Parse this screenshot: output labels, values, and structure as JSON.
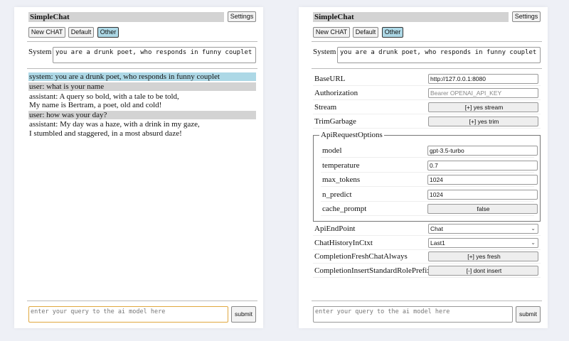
{
  "app": {
    "title": "SimpleChat",
    "settings_label": "Settings",
    "buttons": [
      "New CHAT",
      "Default",
      "Other"
    ],
    "selected": "Other"
  },
  "system": {
    "label": "System",
    "value": "you are a drunk poet, who responds in funny couplet"
  },
  "chat": {
    "messages": [
      {
        "role": "system",
        "lines": [
          "system: you are a drunk poet, who responds in funny couplet"
        ]
      },
      {
        "role": "user",
        "lines": [
          "user: what is your name"
        ]
      },
      {
        "role": "assistant",
        "lines": [
          "assistant: A query so bold, with a tale to be told,",
          "My name is Bertram, a poet, old and cold!"
        ]
      },
      {
        "role": "user",
        "lines": [
          "user: how was your day?"
        ]
      },
      {
        "role": "assistant",
        "lines": [
          "assistant: My day was a haze, with a drink in my gaze,",
          "I stumbled and staggered, in a most absurd daze!"
        ]
      }
    ]
  },
  "input": {
    "placeholder": "enter your query to the ai model here",
    "submit_label": "submit"
  },
  "settings": {
    "rows": [
      {
        "label": "BaseURL",
        "type": "input",
        "value": "http://127.0.0.1:8080"
      },
      {
        "label": "Authorization",
        "type": "placeholder",
        "value": "Bearer OPENAI_API_KEY"
      },
      {
        "label": "Stream",
        "type": "button",
        "value": "[+] yes stream"
      },
      {
        "label": "TrimGarbage",
        "type": "button",
        "value": "[+] yes trim"
      }
    ],
    "fieldset": {
      "legend": "ApiRequestOptions",
      "rows": [
        {
          "label": "model",
          "type": "input",
          "value": "gpt-3.5-turbo"
        },
        {
          "label": "temperature",
          "type": "input",
          "value": "0.7"
        },
        {
          "label": "max_tokens",
          "type": "input",
          "value": "1024"
        },
        {
          "label": "n_predict",
          "type": "input",
          "value": "1024"
        },
        {
          "label": "cache_prompt",
          "type": "button",
          "value": "false"
        }
      ]
    },
    "rows2": [
      {
        "label": "ApiEndPoint",
        "type": "select",
        "value": "Chat"
      },
      {
        "label": "ChatHistoryInCtxt",
        "type": "select",
        "value": "Last1"
      },
      {
        "label": "CompletionFreshChatAlways",
        "type": "button",
        "value": "[+] yes fresh"
      },
      {
        "label": "CompletionInsertStandardRolePrefix",
        "type": "button",
        "value": "[-] dont insert"
      }
    ]
  },
  "colors": {
    "system_bg": "#add8e6",
    "user_bg": "#d3d3d3",
    "selected_button": "#add8e6",
    "focus_border": "#e0a840"
  }
}
